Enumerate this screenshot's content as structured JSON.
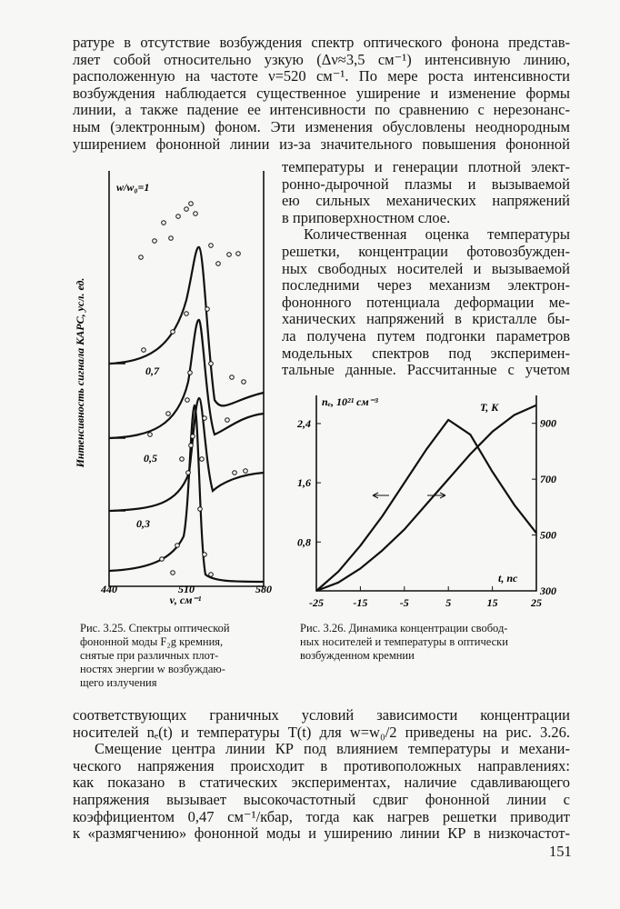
{
  "text_top": [
    "ратуре в отсутствие возбуждения спектр оптического фонона представ-",
    "ляет собой относительно узкую (Δν≈3,5 см⁻¹) интенсивную линию,",
    "расположенную на частоте ν=520 см⁻¹. По мере роста интенсивности",
    "возбуждения наблюдается существенное уширение и изменение формы",
    "линии, а также падение ее интенсивности по сравнению с нерезонанс-",
    "ным (электронным) фоном. Эти изменения обусловлены неоднородным",
    "уширением фононной линии из-за значительного повышения фононной"
  ],
  "text_wrap": [
    "температуры и генерации плотной элект-",
    "ронно-дырочной плазмы и вызываемой",
    "ею сильных механических напряжений",
    "в приповерхностном слое.",
    "Количественная оценка температуры",
    "решетки, концентрации фотовозбужден-",
    "ных свободных носителей и вызываемой",
    "последними через механизм электрон-",
    "фононного потенциала деформации ме-",
    "ханических напряжений в кристалле бы-",
    "ла получена путем подгонки параметров",
    "модельных спектров под эксперимен-",
    "тальные данные. Рассчитанные с учетом"
  ],
  "figure_3_25": {
    "y_label": "Интенсивность сигнала КАРС, усл. ед.",
    "x_label": "ν, см⁻¹",
    "xticks": [
      440,
      510,
      580
    ],
    "curve_labels": [
      "w/w₀=1",
      "0,7",
      "0,5",
      "0,3"
    ],
    "caption": [
      "Рис. 3.25. Спектры оптической",
      "фононной моды F₂g кремния,",
      "снятые при различных плот-",
      "ностях энергии w возбуждаю-",
      "щего излучения"
    ]
  },
  "figure_3_26": {
    "caption": [
      "Рис. 3.26. Динамика концентрации свобод-",
      "ных носителей и температуры в оптически",
      "возбужденном кремнии"
    ],
    "chart_data": {
      "type": "line",
      "y_label": "nₑ, 10²¹ см⁻³",
      "x_label": "t, пс",
      "y2_label": "T, K",
      "x": [
        -25,
        -20,
        -15,
        -10,
        -5,
        0,
        5,
        10,
        15,
        20,
        25
      ],
      "series": [
        {
          "values": [
            0.14,
            0.4,
            0.75,
            1.15,
            1.6,
            2.05,
            2.45,
            2.25,
            1.75,
            1.3,
            0.92
          ],
          "color": "#111"
        },
        {
          "values": [
            300,
            330,
            380,
            445,
            520,
            610,
            700,
            790,
            870,
            930,
            965
          ],
          "color": "#111",
          "axis": "y2"
        }
      ],
      "xlim": [
        -25,
        25
      ],
      "xticks": [
        -25,
        -15,
        -5,
        5,
        15,
        25
      ],
      "ylim": [
        0.14,
        2.78
      ],
      "yticks": [
        {
          "value": 0.8,
          "label": "0,8"
        },
        {
          "value": 1.6,
          "label": "1,6"
        },
        {
          "value": 2.4,
          "label": "2,4"
        }
      ],
      "y2lim": [
        300,
        1000
      ],
      "y2ticks": [
        300,
        500,
        700,
        900
      ]
    }
  },
  "text_bottom": [
    "соответствующих граничных условий зависимости концентрации",
    "носителей nₑ(t) и температуры T(t) для w=w₀/2 приведены на рис. 3.26.",
    "Смещение центра линии КР под влиянием температуры и механи-",
    "ческого напряжения происходит в противоположных направлениях:",
    "как показано в статических экспериментах, наличие сдавливающего",
    "напряжения вызывает высокочастотный сдвиг фононной линии с",
    "коэффициентом 0,47 см⁻¹/кбар, тогда как нагрев решетки приводит",
    "к «размягчению» фононной моды и уширению линии КР в низкочастот-"
  ],
  "page_number": "151"
}
